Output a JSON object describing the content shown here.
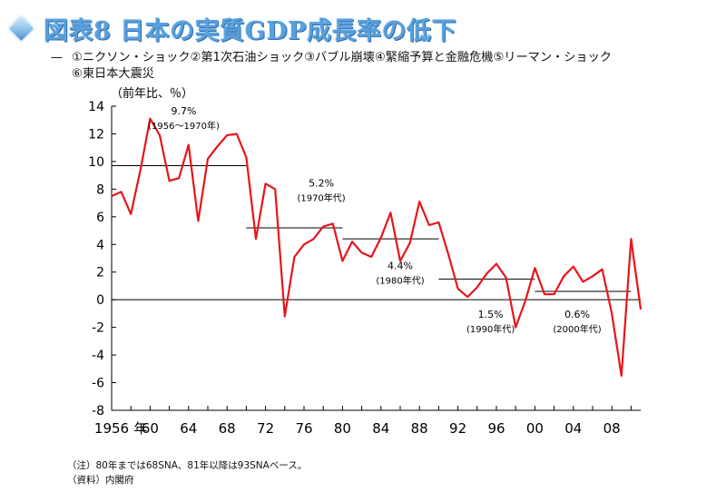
{
  "title": "図表8 日本の実質GDP成長率の低下",
  "legend": {
    "dash": "—",
    "line1": "①ニクソン・ショック②第1次石油ショック③バブル崩壊④緊縮予算と金融危機⑤リーマン・ショック",
    "line2": "⑥東日本大震災"
  },
  "notes": [
    "（注）80年までは68SNA、81年以降は93SNAベース。",
    "（資料）内閣府"
  ],
  "colors": {
    "series": "#e8141b",
    "reference": "#000000",
    "title": "#5aa0dc"
  },
  "chart_data": {
    "type": "line",
    "ylabel": "（前年比、％）",
    "xlabel": "年",
    "ylim": [
      -8,
      14
    ],
    "xlim": [
      1956,
      2011
    ],
    "yticks": [
      -8,
      -6,
      -4,
      -2,
      0,
      2,
      4,
      6,
      8,
      10,
      12,
      14
    ],
    "xtick_labels": [
      {
        "x": 1956,
        "label": "1956"
      },
      {
        "x": 1960,
        "label": "60"
      },
      {
        "x": 1964,
        "label": "64"
      },
      {
        "x": 1968,
        "label": "68"
      },
      {
        "x": 1972,
        "label": "72"
      },
      {
        "x": 1976,
        "label": "76"
      },
      {
        "x": 1980,
        "label": "80"
      },
      {
        "x": 1984,
        "label": "84"
      },
      {
        "x": 1988,
        "label": "88"
      },
      {
        "x": 1992,
        "label": "92"
      },
      {
        "x": 1996,
        "label": "96"
      },
      {
        "x": 2000,
        "label": "00"
      },
      {
        "x": 2004,
        "label": "04"
      },
      {
        "x": 2008,
        "label": "08"
      }
    ],
    "grid": false,
    "zero_line": true,
    "series": [
      {
        "x": [
          1956,
          1957,
          1958,
          1959,
          1960,
          1961,
          1962,
          1963,
          1964,
          1965,
          1966,
          1967,
          1968,
          1969,
          1970,
          1971,
          1972,
          1973,
          1974,
          1975,
          1976,
          1977,
          1978,
          1979,
          1980,
          1981,
          1982,
          1983,
          1984,
          1985,
          1986,
          1987,
          1988,
          1989,
          1990,
          1991,
          1992,
          1993,
          1994,
          1995,
          1996,
          1997,
          1998,
          1999,
          2000,
          2001,
          2002,
          2003,
          2004,
          2005,
          2006,
          2007,
          2008,
          2009,
          2010,
          2011
        ],
        "values": [
          7.5,
          7.8,
          6.2,
          9.4,
          13.1,
          11.9,
          8.6,
          8.8,
          11.2,
          5.7,
          10.2,
          11.1,
          11.9,
          12.0,
          10.3,
          4.4,
          8.4,
          8.0,
          -1.2,
          3.1,
          4.0,
          4.4,
          5.3,
          5.5,
          2.8,
          4.2,
          3.4,
          3.1,
          4.5,
          6.3,
          2.8,
          4.1,
          7.1,
          5.4,
          5.6,
          3.3,
          0.8,
          0.2,
          0.9,
          1.9,
          2.6,
          1.6,
          -2.0,
          -0.1,
          2.3,
          0.4,
          0.4,
          1.7,
          2.4,
          1.3,
          1.7,
          2.2,
          -1.0,
          -5.5,
          4.4,
          -0.7
        ]
      }
    ],
    "reference_lines": [
      {
        "from": 1956,
        "to": 1970,
        "value": 9.7,
        "label": "9.7%",
        "sublabel": "(1956～1970年)",
        "label_x": 1963.5,
        "label_y": 13.4
      },
      {
        "from": 1970,
        "to": 1980,
        "value": 5.2,
        "label": "5.2%",
        "sublabel": "(1970年代)",
        "label_x": 1977.8,
        "label_y": 8.2
      },
      {
        "from": 1980,
        "to": 1990,
        "value": 4.4,
        "label": "4.4%",
        "sublabel": "(1980年代)",
        "label_x": 1986.0,
        "label_y": 2.2
      },
      {
        "from": 1990,
        "to": 2000,
        "value": 1.5,
        "label": "1.5%",
        "sublabel": "(1990年代)",
        "label_x": 1995.4,
        "label_y": -1.3
      },
      {
        "from": 2000,
        "to": 2010,
        "value": 0.6,
        "label": "0.6%",
        "sublabel": "(2000年代)",
        "label_x": 2004.4,
        "label_y": -1.3
      }
    ]
  }
}
